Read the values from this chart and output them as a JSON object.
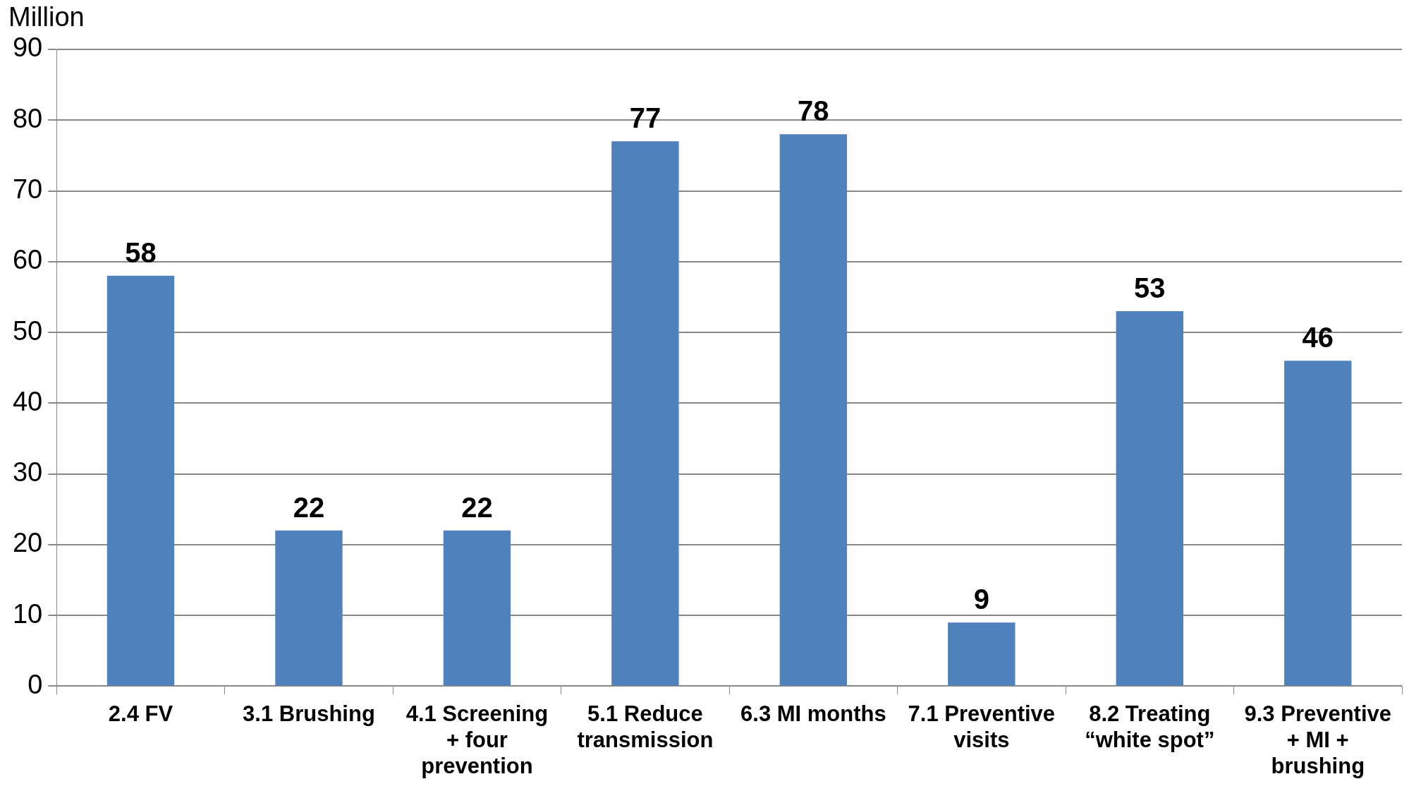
{
  "chart_data": {
    "type": "bar",
    "ylabel": "Million",
    "categories": [
      "2.4 FV",
      "3.1 Brushing",
      "4.1 Screening + four prevention",
      "5.1 Reduce transmission",
      "6.3 MI months",
      "7.1 Preventive visits",
      "8.2 Treating “white spot”",
      "9.3 Preventive + MI + brushing"
    ],
    "values": [
      58,
      22,
      22,
      77,
      78,
      9,
      53,
      46
    ],
    "color": "#4f81bd",
    "ylim": [
      0,
      90
    ],
    "yticks": [
      0,
      10,
      20,
      30,
      40,
      50,
      60,
      70,
      80,
      90
    ],
    "grid": "y",
    "data_labels": true
  }
}
